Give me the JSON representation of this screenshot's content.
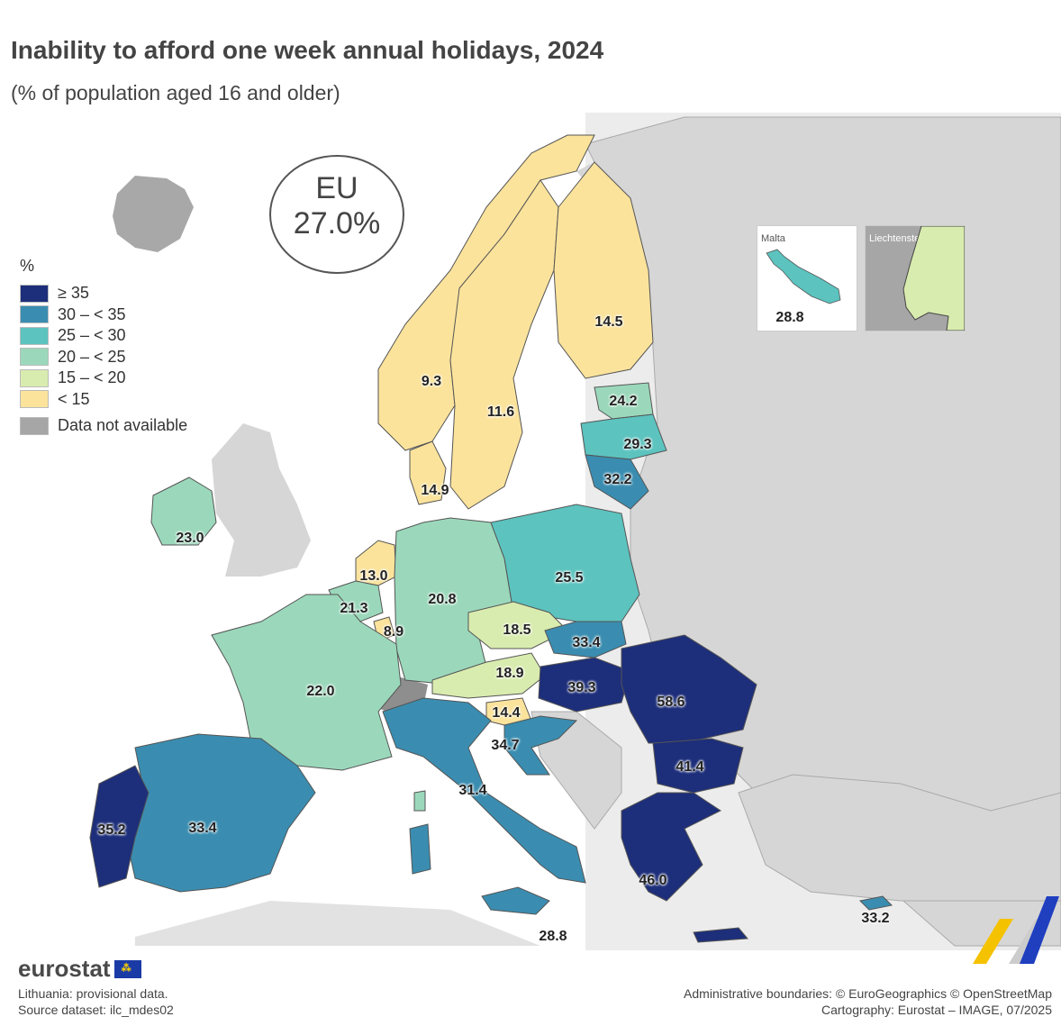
{
  "title": "Inability to afford one week annual holidays, 2024",
  "subtitle": "(% of population aged 16 and older)",
  "eu_badge": {
    "line1": "EU",
    "line2": "27.0%"
  },
  "legend": {
    "unit": "%",
    "classes": [
      {
        "label": "≥ 35",
        "color": "#1d2e7a"
      },
      {
        "label": "30 – < 35",
        "color": "#3a8db0"
      },
      {
        "label": "25 – < 30",
        "color": "#5cc3bf"
      },
      {
        "label": "20 – < 25",
        "color": "#9bd8bb"
      },
      {
        "label": "15 – < 20",
        "color": "#d9ecaf"
      },
      {
        "label": "< 15",
        "color": "#fbe39c"
      }
    ],
    "not_available": {
      "label": "Data not available",
      "color": "#a6a6a6"
    }
  },
  "values": {
    "norway": "9.3",
    "sweden": "11.6",
    "finland": "14.5",
    "estonia": "24.2",
    "latvia": "29.3",
    "lithuania": "32.2",
    "denmark": "14.9",
    "ireland": "23.0",
    "netherlands": "13.0",
    "belgium": "21.3",
    "luxembourg": "8.9",
    "germany": "20.8",
    "poland": "25.5",
    "czechia": "18.5",
    "slovakia": "33.4",
    "austria": "18.9",
    "hungary": "39.3",
    "romania": "58.6",
    "france": "22.0",
    "slovenia": "14.4",
    "croatia": "34.7",
    "italy": "31.4",
    "bulgaria": "41.4",
    "portugal": "35.2",
    "spain": "33.4",
    "greece": "46.0",
    "sicily_malta_note": "28.8",
    "cyprus": "33.2"
  },
  "insets": {
    "malta": {
      "label": "Malta",
      "value": "28.8"
    },
    "liechtenstein": {
      "label": "Liechtenstein"
    }
  },
  "footer": {
    "logo": "eurostat",
    "note1": "Lithuania: provisional data.",
    "note2": "Source dataset: ilc_mdes02",
    "credit1": "Administrative boundaries: © EuroGeographics © OpenStreetMap",
    "credit2": "Cartography: Eurostat – IMAGE, 07/2025"
  }
}
